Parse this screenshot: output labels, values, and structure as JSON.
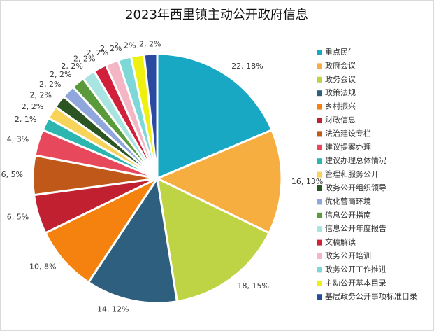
{
  "chart_data": {
    "type": "pie",
    "title": "2023年西里镇主动公开政府信息",
    "categories": [
      "重点民生",
      "政府会议",
      "政务会议",
      "政策法规",
      "乡村振兴",
      "财政信息",
      "法治建设专栏",
      "建议提案办理",
      "建议办理总体情况",
      "管理和服务公开",
      "政务公开组织领导",
      "优化营商环境",
      "信息公开指南",
      "信息公开年度报告",
      "文稿解读",
      "政务公开培训",
      "政务公开工作推进",
      "主动公开基本目录",
      "基层政务公开事项标准目录"
    ],
    "values": [
      22,
      16,
      18,
      14,
      10,
      6,
      6,
      4,
      2,
      2,
      2,
      2,
      2,
      2,
      2,
      2,
      2,
      2,
      2
    ],
    "value_labels": [
      "22, 18%",
      "16, 13%",
      "18, 15%",
      "14, 12%",
      "10, 8%",
      "6, 5%",
      "6, 5%",
      "4, 3%",
      "2, 1%",
      "2, 2%",
      "2, 2%",
      "2, 2%",
      "2, 2%",
      "2, 2%",
      "2, 2%",
      "2, 2%",
      "2, 2%",
      "2, 2%",
      "2, 2%"
    ],
    "colors": [
      "#18a8c4",
      "#f6ae40",
      "#bfd444",
      "#2f5f7e",
      "#f5820e",
      "#c0202f",
      "#c0581a",
      "#e8485c",
      "#2db5b0",
      "#f8d35a",
      "#2d5524",
      "#8fa7dc",
      "#5a9a3a",
      "#a8e4e0",
      "#d0203a",
      "#f4b6c4",
      "#7fd8d8",
      "#eef010",
      "#2a4aa0"
    ],
    "legend": "right"
  }
}
